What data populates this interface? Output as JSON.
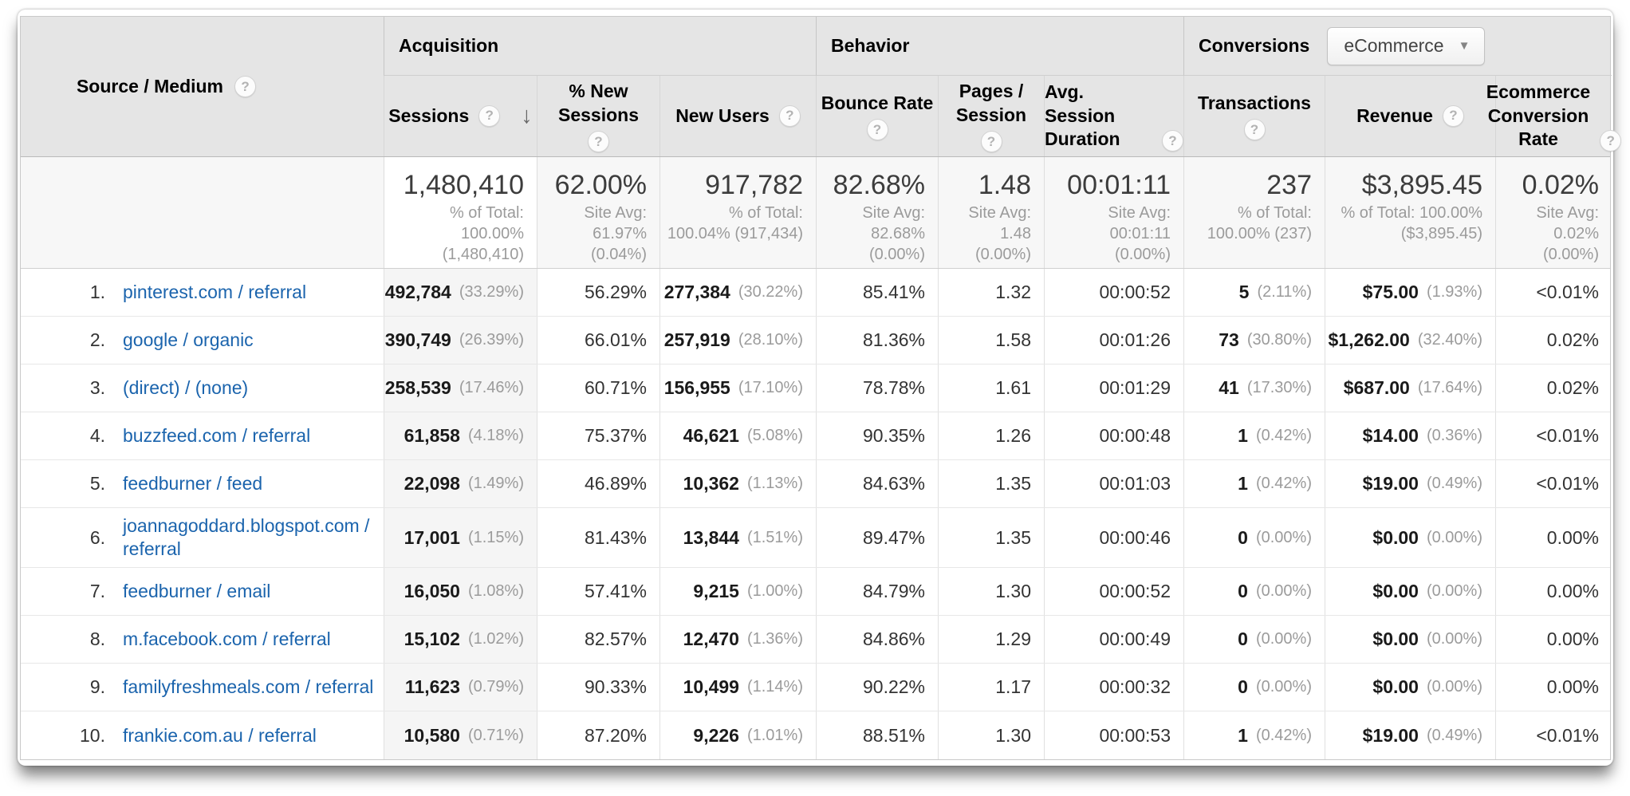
{
  "colors": {
    "link": "#1b64ad",
    "header_bg": "#e5e5e5",
    "summary_bg": "#f7f7f7",
    "sorted_column_bg": "#f5f5f5"
  },
  "header": {
    "row_dimension": {
      "label": "Source / Medium"
    },
    "groups": {
      "acquisition": "Acquisition",
      "behavior": "Behavior",
      "conversions": "Conversions"
    },
    "conversions_dropdown": {
      "value": "eCommerce"
    },
    "columns": {
      "sessions": {
        "label": "Sessions"
      },
      "pct_new_sessions": {
        "lines": [
          "% New",
          "Sessions"
        ]
      },
      "new_users": {
        "label": "New Users"
      },
      "bounce_rate": {
        "label": "Bounce Rate"
      },
      "pages_session": {
        "lines": [
          "Pages /",
          "Session"
        ]
      },
      "avg_duration": {
        "lines": [
          "Avg. Session",
          "Duration"
        ]
      },
      "transactions": {
        "label": "Transactions"
      },
      "revenue": {
        "label": "Revenue"
      },
      "ecomm_rate": {
        "lines": [
          "Ecommerce",
          "Conversion",
          "Rate"
        ]
      }
    }
  },
  "summary": {
    "sessions": {
      "value": "1,480,410",
      "sub": [
        "% of Total:",
        "100.00%",
        "(1,480,410)"
      ]
    },
    "pct_new_sessions": {
      "value": "62.00%",
      "sub": [
        "Site Avg:",
        "61.97%",
        "(0.04%)"
      ]
    },
    "new_users": {
      "value": "917,782",
      "sub": [
        "% of Total:",
        "100.04% (917,434)"
      ]
    },
    "bounce_rate": {
      "value": "82.68%",
      "sub": [
        "Site Avg:",
        "82.68%",
        "(0.00%)"
      ]
    },
    "pages_session": {
      "value": "1.48",
      "sub": [
        "Site Avg:",
        "1.48",
        "(0.00%)"
      ]
    },
    "avg_duration": {
      "value": "00:01:11",
      "sub": [
        "Site Avg:",
        "00:01:11",
        "(0.00%)"
      ]
    },
    "transactions": {
      "value": "237",
      "sub": [
        "% of Total:",
        "100.00% (237)"
      ]
    },
    "revenue": {
      "value": "$3,895.45",
      "sub": [
        "% of Total: 100.00%",
        "($3,895.45)"
      ]
    },
    "ecomm_rate": {
      "value": "0.02%",
      "sub": [
        "Site Avg:",
        "0.02%",
        "(0.00%)"
      ]
    }
  },
  "rows": [
    {
      "rank": "1.",
      "source": "pinterest.com / referral",
      "sessions": "492,784",
      "sessions_pct": "(33.29%)",
      "pct_new": "56.29%",
      "new_users": "277,384",
      "new_users_pct": "(30.22%)",
      "bounce": "85.41%",
      "pages": "1.32",
      "duration": "00:00:52",
      "transactions": "5",
      "transactions_pct": "(2.11%)",
      "revenue": "$75.00",
      "revenue_pct": "(1.93%)",
      "conv_rate": "<0.01%"
    },
    {
      "rank": "2.",
      "source": "google / organic",
      "sessions": "390,749",
      "sessions_pct": "(26.39%)",
      "pct_new": "66.01%",
      "new_users": "257,919",
      "new_users_pct": "(28.10%)",
      "bounce": "81.36%",
      "pages": "1.58",
      "duration": "00:01:26",
      "transactions": "73",
      "transactions_pct": "(30.80%)",
      "revenue": "$1,262.00",
      "revenue_pct": "(32.40%)",
      "conv_rate": "0.02%"
    },
    {
      "rank": "3.",
      "source": "(direct) / (none)",
      "sessions": "258,539",
      "sessions_pct": "(17.46%)",
      "pct_new": "60.71%",
      "new_users": "156,955",
      "new_users_pct": "(17.10%)",
      "bounce": "78.78%",
      "pages": "1.61",
      "duration": "00:01:29",
      "transactions": "41",
      "transactions_pct": "(17.30%)",
      "revenue": "$687.00",
      "revenue_pct": "(17.64%)",
      "conv_rate": "0.02%"
    },
    {
      "rank": "4.",
      "source": "buzzfeed.com / referral",
      "sessions": "61,858",
      "sessions_pct": "(4.18%)",
      "pct_new": "75.37%",
      "new_users": "46,621",
      "new_users_pct": "(5.08%)",
      "bounce": "90.35%",
      "pages": "1.26",
      "duration": "00:00:48",
      "transactions": "1",
      "transactions_pct": "(0.42%)",
      "revenue": "$14.00",
      "revenue_pct": "(0.36%)",
      "conv_rate": "<0.01%"
    },
    {
      "rank": "5.",
      "source": "feedburner / feed",
      "sessions": "22,098",
      "sessions_pct": "(1.49%)",
      "pct_new": "46.89%",
      "new_users": "10,362",
      "new_users_pct": "(1.13%)",
      "bounce": "84.63%",
      "pages": "1.35",
      "duration": "00:01:03",
      "transactions": "1",
      "transactions_pct": "(0.42%)",
      "revenue": "$19.00",
      "revenue_pct": "(0.49%)",
      "conv_rate": "<0.01%"
    },
    {
      "rank": "6.",
      "source": "joannagoddard.blogspot.com / referral",
      "sessions": "17,001",
      "sessions_pct": "(1.15%)",
      "pct_new": "81.43%",
      "new_users": "13,844",
      "new_users_pct": "(1.51%)",
      "bounce": "89.47%",
      "pages": "1.35",
      "duration": "00:00:46",
      "transactions": "0",
      "transactions_pct": "(0.00%)",
      "revenue": "$0.00",
      "revenue_pct": "(0.00%)",
      "conv_rate": "0.00%"
    },
    {
      "rank": "7.",
      "source": "feedburner / email",
      "sessions": "16,050",
      "sessions_pct": "(1.08%)",
      "pct_new": "57.41%",
      "new_users": "9,215",
      "new_users_pct": "(1.00%)",
      "bounce": "84.79%",
      "pages": "1.30",
      "duration": "00:00:52",
      "transactions": "0",
      "transactions_pct": "(0.00%)",
      "revenue": "$0.00",
      "revenue_pct": "(0.00%)",
      "conv_rate": "0.00%"
    },
    {
      "rank": "8.",
      "source": "m.facebook.com / referral",
      "sessions": "15,102",
      "sessions_pct": "(1.02%)",
      "pct_new": "82.57%",
      "new_users": "12,470",
      "new_users_pct": "(1.36%)",
      "bounce": "84.86%",
      "pages": "1.29",
      "duration": "00:00:49",
      "transactions": "0",
      "transactions_pct": "(0.00%)",
      "revenue": "$0.00",
      "revenue_pct": "(0.00%)",
      "conv_rate": "0.00%"
    },
    {
      "rank": "9.",
      "source": "familyfreshmeals.com / referral",
      "sessions": "11,623",
      "sessions_pct": "(0.79%)",
      "pct_new": "90.33%",
      "new_users": "10,499",
      "new_users_pct": "(1.14%)",
      "bounce": "90.22%",
      "pages": "1.17",
      "duration": "00:00:32",
      "transactions": "0",
      "transactions_pct": "(0.00%)",
      "revenue": "$0.00",
      "revenue_pct": "(0.00%)",
      "conv_rate": "0.00%"
    },
    {
      "rank": "10.",
      "source": "frankie.com.au / referral",
      "sessions": "10,580",
      "sessions_pct": "(0.71%)",
      "pct_new": "87.20%",
      "new_users": "9,226",
      "new_users_pct": "(1.01%)",
      "bounce": "88.51%",
      "pages": "1.30",
      "duration": "00:00:53",
      "transactions": "1",
      "transactions_pct": "(0.42%)",
      "revenue": "$19.00",
      "revenue_pct": "(0.49%)",
      "conv_rate": "<0.01%"
    }
  ]
}
